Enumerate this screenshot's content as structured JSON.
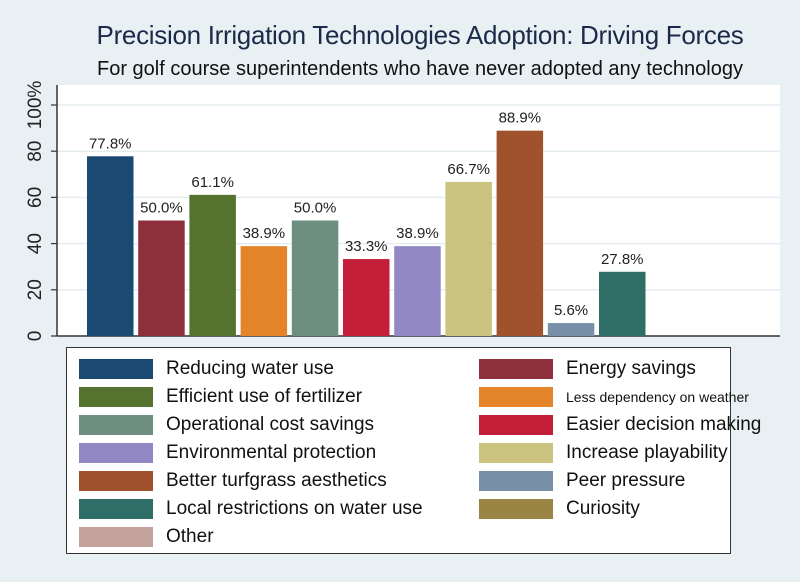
{
  "chart_data": {
    "type": "bar",
    "title": "Precision Irrigation Technologies Adoption: Driving Forces",
    "subtitle": "For golf course superintendents who have never adopted any technology",
    "xlabel": "",
    "ylabel": "",
    "ylim": [
      0,
      100
    ],
    "yticks": [
      {
        "value": 0,
        "label": "0"
      },
      {
        "value": 20,
        "label": "20"
      },
      {
        "value": 40,
        "label": "40"
      },
      {
        "value": 60,
        "label": "60"
      },
      {
        "value": 80,
        "label": "80"
      },
      {
        "value": 100,
        "label": "100%"
      }
    ],
    "grid": true,
    "legend_position": "bottom",
    "categories": [
      "Reducing water use",
      "Energy savings",
      "Efficient use of fertilizer",
      "Less dependency on weather",
      "Operational cost savings",
      "Easier decision making",
      "Environmental protection",
      "Increase playability",
      "Better turfgrass aesthetics",
      "Peer pressure",
      "Local restrictions on water use",
      "Curiosity",
      "Other"
    ],
    "values": [
      77.8,
      50.0,
      61.1,
      38.9,
      50.0,
      33.3,
      38.9,
      66.7,
      88.9,
      5.6,
      27.8,
      0,
      0
    ],
    "data_labels": [
      "77.8%",
      "50.0%",
      "61.1%",
      "38.9%",
      "50.0%",
      "33.3%",
      "38.9%",
      "66.7%",
      "88.9%",
      "5.6%",
      "27.8%",
      "",
      ""
    ],
    "colors": [
      "#1a4a72",
      "#8e2f3c",
      "#55732f",
      "#e38428",
      "#6e8f80",
      "#c41f38",
      "#9289c4",
      "#cbc380",
      "#a0522d",
      "#7890a8",
      "#2e6e66",
      "#9a8544",
      "#c4a29e"
    ]
  },
  "legend": {
    "left": [
      {
        "label": "Reducing water use",
        "color": "#1a4a72"
      },
      {
        "label": "Efficient use of fertilizer",
        "color": "#55732f"
      },
      {
        "label": "Operational cost savings",
        "color": "#6e8f80"
      },
      {
        "label": "Environmental protection",
        "color": "#9289c4"
      },
      {
        "label": "Better turfgrass aesthetics",
        "color": "#a0522d"
      },
      {
        "label": "Local restrictions on water use",
        "color": "#2e6e66"
      },
      {
        "label": "Other",
        "color": "#c4a29e"
      }
    ],
    "right": [
      {
        "label": "Energy savings",
        "color": "#8e2f3c"
      },
      {
        "label": "Less dependency on weather",
        "color": "#e38428",
        "small": true
      },
      {
        "label": "Easier decision making",
        "color": "#c41f38"
      },
      {
        "label": "Increase playability",
        "color": "#cbc380"
      },
      {
        "label": "Peer pressure",
        "color": "#7890a8"
      },
      {
        "label": "Curiosity",
        "color": "#9a8544"
      }
    ]
  }
}
